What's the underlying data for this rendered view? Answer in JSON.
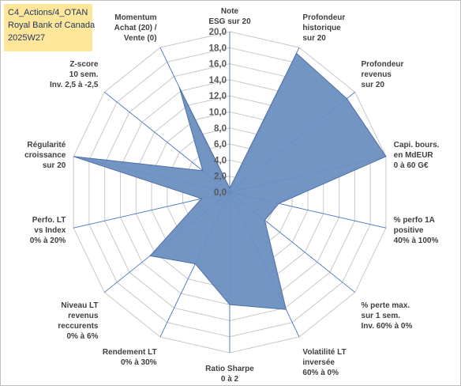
{
  "title_box": {
    "line1": "C4_Actions/4_OTAN",
    "line2": "Royal Bank of Canada",
    "line3": "2025W27"
  },
  "colors": {
    "fill": "#6b8fc0",
    "stroke": "#4e6fa3",
    "grid": "#c8c8c8",
    "spoke": "#4472c4",
    "title_bg": "#ffe699",
    "title_text": "#1f3864"
  },
  "chart_data": {
    "type": "radar",
    "rmin": 0,
    "rmax": 20,
    "tick_step": 2,
    "tick_labels": [
      "0,0",
      "2,0",
      "4,0",
      "6,0",
      "8,0",
      "10,0",
      "12,0",
      "14,0",
      "16,0",
      "18,0",
      "20,0"
    ],
    "grid": true,
    "legend": "none",
    "axes": [
      {
        "label": [
          "Note",
          "ESG sur 20"
        ],
        "value": 0.5
      },
      {
        "label": [
          "Profondeur",
          "historique",
          "sur 20"
        ],
        "value": 19.2
      },
      {
        "label": [
          "Profondeur",
          "revenus",
          "sur 20"
        ],
        "value": 18.7
      },
      {
        "label": [
          "Capi. bours.",
          "en MdEUR",
          "0 à 60 G€"
        ],
        "value": 20.0
      },
      {
        "label": [
          "% perfo 1A",
          "positive",
          "40% à 100%"
        ],
        "value": 6.3
      },
      {
        "label": [
          "% perte max.",
          "sur 1 sem.",
          "Inv. 60% à 0%"
        ],
        "value": 5.6
      },
      {
        "label": [
          "Volatilité LT",
          "inversée",
          "60% à 0%"
        ],
        "value": 16.2
      },
      {
        "label": [
          "Ratio Sharpe",
          "0 à 2"
        ],
        "value": 14.0
      },
      {
        "label": [
          "Rendement LT",
          "0% à 30%"
        ],
        "value": 9.9
      },
      {
        "label": [
          "Niveau LT",
          "revenus",
          "reccurents",
          "0% à 6%"
        ],
        "value": 12.7
      },
      {
        "label": [
          "Perfo. LT",
          "vs Index",
          "0% à 20%"
        ],
        "value": 3.6
      },
      {
        "label": [
          "Régularité",
          "croissance",
          "sur 20"
        ],
        "value": 20.0
      },
      {
        "label": [
          "Z-score",
          "10 sem.",
          "Inv. 2,5 à -2,5"
        ],
        "value": 4.3
      },
      {
        "label": [
          "Momentum",
          "Achat (20) /",
          "Vente (0)"
        ],
        "value": 14.5
      }
    ]
  }
}
